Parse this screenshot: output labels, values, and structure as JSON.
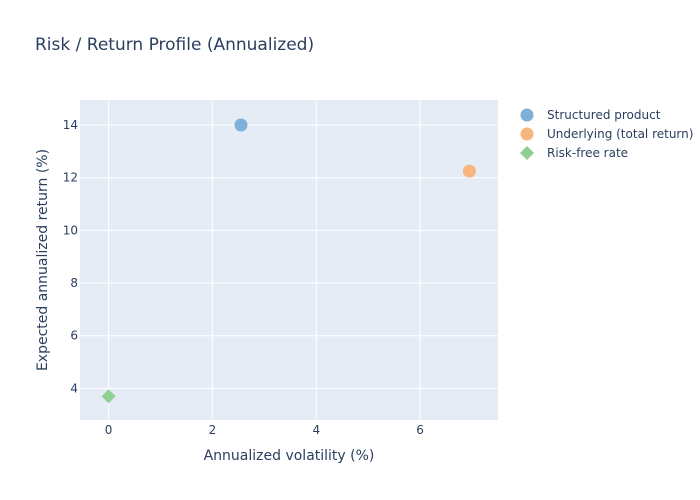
{
  "chart_data": {
    "type": "scatter",
    "title": "Risk / Return Profile (Annualized)",
    "xlabel": "Annualized volatility (%)",
    "ylabel": "Expected annualized return (%)",
    "xlim": [
      -0.55,
      7.5
    ],
    "ylim": [
      2.8,
      14.95
    ],
    "x_ticks": [
      0,
      2,
      4,
      6
    ],
    "y_ticks": [
      4,
      6,
      8,
      10,
      12,
      14
    ],
    "grid": true,
    "legend_position": "top-right",
    "background_color": "#e5ecf6",
    "grid_color": "#ffffff",
    "text_color": "#2a3f5f",
    "series": [
      {
        "name": "Structured product",
        "marker": "circle",
        "color": "#7fb0d8",
        "points": [
          {
            "x": 2.55,
            "y": 14.0
          }
        ]
      },
      {
        "name": "Underlying (total return)",
        "marker": "circle",
        "color": "#f7b57f",
        "points": [
          {
            "x": 6.95,
            "y": 12.25
          }
        ]
      },
      {
        "name": "Risk-free rate",
        "marker": "diamond",
        "color": "#8fcf8f",
        "points": [
          {
            "x": 0.0,
            "y": 3.7
          }
        ]
      }
    ]
  }
}
